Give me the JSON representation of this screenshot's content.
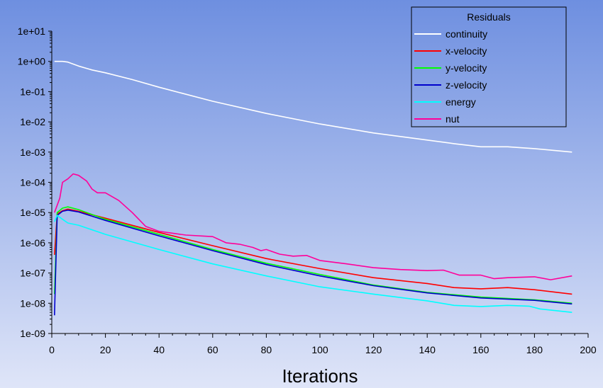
{
  "chart_data": {
    "type": "line",
    "title": "",
    "xlabel": "Iterations",
    "ylabel": "",
    "xlim": [
      0,
      200
    ],
    "ylim": [
      1e-09,
      10.0
    ],
    "yscale": "log",
    "xticks": [
      "0",
      "20",
      "40",
      "60",
      "80",
      "100",
      "120",
      "140",
      "160",
      "180",
      "200"
    ],
    "yticks": [
      "1e+01",
      "1e+00",
      "1e-01",
      "1e-02",
      "1e-03",
      "1e-04",
      "1e-05",
      "1e-06",
      "1e-07",
      "1e-08",
      "1e-09"
    ],
    "grid": false,
    "legend": {
      "title": "Residuals",
      "placement": "top-right"
    },
    "background": [
      "#6e8fe0",
      "#dfe5f8"
    ],
    "series": [
      {
        "name": "continuity",
        "color": "#ffffff",
        "points": [
          [
            1,
            1
          ],
          [
            4,
            1
          ],
          [
            6,
            0.95
          ],
          [
            10,
            0.7
          ],
          [
            15,
            0.52
          ],
          [
            20,
            0.42
          ],
          [
            30,
            0.25
          ],
          [
            40,
            0.14
          ],
          [
            60,
            0.048
          ],
          [
            80,
            0.019
          ],
          [
            100,
            0.0085
          ],
          [
            120,
            0.0043
          ],
          [
            140,
            0.0025
          ],
          [
            150,
            0.0019
          ],
          [
            160,
            0.0015
          ],
          [
            170,
            0.0015
          ],
          [
            180,
            0.0013
          ],
          [
            194,
            0.001
          ]
        ]
      },
      {
        "name": "x-velocity",
        "color": "#ff0000",
        "points": [
          [
            1,
            4e-07
          ],
          [
            2,
            9e-06
          ],
          [
            4,
            1.15e-05
          ],
          [
            6,
            1.3e-05
          ],
          [
            10,
            1.1e-05
          ],
          [
            20,
            6.5e-06
          ],
          [
            40,
            2.2e-06
          ],
          [
            60,
            8e-07
          ],
          [
            80,
            3e-07
          ],
          [
            100,
            1.4e-07
          ],
          [
            120,
            7e-08
          ],
          [
            140,
            4.5e-08
          ],
          [
            150,
            3.3e-08
          ],
          [
            160,
            3e-08
          ],
          [
            170,
            3.3e-08
          ],
          [
            180,
            2.8e-08
          ],
          [
            194,
            2e-08
          ]
        ]
      },
      {
        "name": "y-velocity",
        "color": "#00ff00",
        "points": [
          [
            1,
            2e-08
          ],
          [
            2,
            1e-05
          ],
          [
            4,
            1.4e-05
          ],
          [
            6,
            1.55e-05
          ],
          [
            10,
            1.25e-05
          ],
          [
            20,
            6e-06
          ],
          [
            40,
            1.9e-06
          ],
          [
            60,
            6e-07
          ],
          [
            80,
            2.1e-07
          ],
          [
            100,
            9e-08
          ],
          [
            120,
            4e-08
          ],
          [
            140,
            2.3e-08
          ],
          [
            160,
            1.6e-08
          ],
          [
            180,
            1.3e-08
          ],
          [
            194,
            1e-08
          ]
        ]
      },
      {
        "name": "z-velocity",
        "color": "#0000cc",
        "points": [
          [
            1,
            4e-09
          ],
          [
            2,
            8e-06
          ],
          [
            4,
            1.1e-05
          ],
          [
            6,
            1.2e-05
          ],
          [
            10,
            1.05e-05
          ],
          [
            20,
            5.5e-06
          ],
          [
            40,
            1.7e-06
          ],
          [
            60,
            5.5e-07
          ],
          [
            80,
            1.9e-07
          ],
          [
            100,
            8e-08
          ],
          [
            120,
            3.8e-08
          ],
          [
            140,
            2.2e-08
          ],
          [
            160,
            1.5e-08
          ],
          [
            180,
            1.25e-08
          ],
          [
            194,
            9.5e-09
          ]
        ]
      },
      {
        "name": "energy",
        "color": "#00ffff",
        "points": [
          [
            1,
            5e-06
          ],
          [
            2,
            8e-06
          ],
          [
            4,
            6e-06
          ],
          [
            6,
            4.5e-06
          ],
          [
            10,
            3.8e-06
          ],
          [
            20,
            1.9e-06
          ],
          [
            40,
            6e-07
          ],
          [
            60,
            2e-07
          ],
          [
            80,
            8e-08
          ],
          [
            100,
            3.5e-08
          ],
          [
            120,
            2e-08
          ],
          [
            140,
            1.2e-08
          ],
          [
            150,
            8.5e-09
          ],
          [
            160,
            7.8e-09
          ],
          [
            170,
            8.5e-09
          ],
          [
            178,
            8e-09
          ],
          [
            182,
            6.5e-09
          ],
          [
            194,
            5e-09
          ]
        ]
      },
      {
        "name": "nut",
        "color": "#ff0099",
        "points": [
          [
            1,
            1e-05
          ],
          [
            3,
            3e-05
          ],
          [
            4,
            0.0001
          ],
          [
            6,
            0.00013
          ],
          [
            8,
            0.00019
          ],
          [
            10,
            0.00017
          ],
          [
            13,
            0.00011
          ],
          [
            15,
            6e-05
          ],
          [
            17,
            4.5e-05
          ],
          [
            20,
            4.5e-05
          ],
          [
            25,
            2.5e-05
          ],
          [
            30,
            1e-05
          ],
          [
            35,
            3.5e-06
          ],
          [
            40,
            2.4e-06
          ],
          [
            50,
            1.8e-06
          ],
          [
            60,
            1.6e-06
          ],
          [
            65,
            1e-06
          ],
          [
            70,
            9e-07
          ],
          [
            75,
            7e-07
          ],
          [
            78,
            5.5e-07
          ],
          [
            80,
            6e-07
          ],
          [
            85,
            4.2e-07
          ],
          [
            90,
            3.6e-07
          ],
          [
            95,
            3.8e-07
          ],
          [
            100,
            2.6e-07
          ],
          [
            110,
            2e-07
          ],
          [
            120,
            1.5e-07
          ],
          [
            130,
            1.3e-07
          ],
          [
            140,
            1.2e-07
          ],
          [
            146,
            1.25e-07
          ],
          [
            152,
            8.5e-08
          ],
          [
            160,
            8.5e-08
          ],
          [
            165,
            6.5e-08
          ],
          [
            170,
            7e-08
          ],
          [
            180,
            7.5e-08
          ],
          [
            186,
            6e-08
          ],
          [
            194,
            8e-08
          ]
        ]
      }
    ]
  }
}
